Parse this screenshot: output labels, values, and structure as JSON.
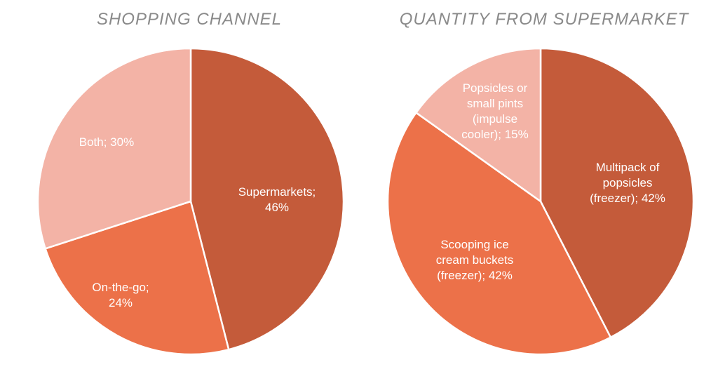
{
  "chart_data": [
    {
      "type": "pie",
      "title": "SHOPPING CHANNEL",
      "slices": [
        {
          "label": "Supermarkets",
          "value": 46,
          "color": "#c45b3a",
          "text_lines": [
            "Supermarkets;",
            "46%"
          ]
        },
        {
          "label": "On-the-go",
          "value": 24,
          "color": "#ec7149",
          "text_lines": [
            "On-the-go;",
            "24%"
          ]
        },
        {
          "label": "Both",
          "value": 30,
          "color": "#f3b3a6",
          "text_lines": [
            "Both; 30%"
          ]
        }
      ]
    },
    {
      "type": "pie",
      "title": "QUANTITY FROM SUPERMARKET",
      "slices": [
        {
          "label": "Multipack of popsicles (freezer)",
          "value": 42,
          "color": "#c45b3a",
          "text_lines": [
            "Multipack of",
            "popsicles",
            "(freezer); 42%"
          ]
        },
        {
          "label": "Scooping ice cream buckets (freezer)",
          "value": 42,
          "color": "#ec7149",
          "text_lines": [
            "Scooping ice",
            "cream buckets",
            "(freezer); 42%"
          ]
        },
        {
          "label": "Popsicles or small pints (impulse cooler)",
          "value": 15,
          "color": "#f3b3a6",
          "text_lines": [
            "Popsicles or",
            "small pints",
            "(impulse",
            "cooler); 15%"
          ]
        }
      ]
    }
  ]
}
